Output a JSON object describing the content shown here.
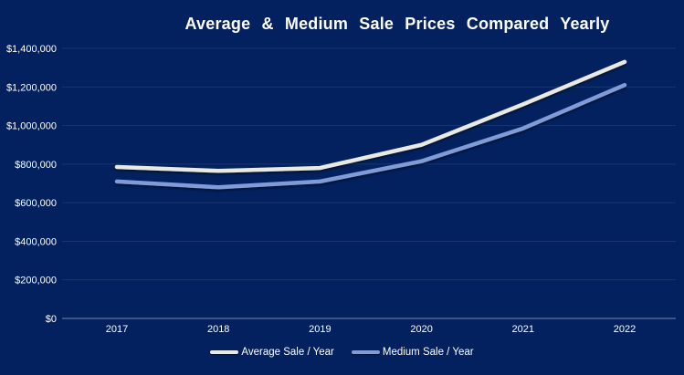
{
  "colors": {
    "background": "#03215E",
    "gridline": "#3A5384",
    "axis_line": "#8FA3C4",
    "tick_text": "#FFFFFF",
    "title_text": "#FFFFFF",
    "series_average": "#EAEAE2",
    "series_medium": "#7F9CD8"
  },
  "chart_data": {
    "type": "line",
    "title": "Average & Medium Sale Prices Compared Yearly",
    "categories": [
      "2017",
      "2018",
      "2019",
      "2020",
      "2021",
      "2022"
    ],
    "series": [
      {
        "name": "Average Sale / Year",
        "color": "#EAEAE2",
        "values": [
          785000,
          765000,
          780000,
          900000,
          1110000,
          1330000
        ]
      },
      {
        "name": "Medium Sale / Year",
        "color": "#7F9CD8",
        "values": [
          710000,
          680000,
          710000,
          815000,
          985000,
          1210000
        ]
      }
    ],
    "xlabel": "",
    "ylabel": "",
    "ylim": [
      0,
      1400000
    ],
    "ytick_step": 200000,
    "ytick_labels": [
      "$0",
      "$200,000",
      "$400,000",
      "$600,000",
      "$800,000",
      "$1,000,000",
      "$1,200,000",
      "$1,400,000"
    ],
    "grid": true,
    "legend_position": "bottom-center"
  }
}
